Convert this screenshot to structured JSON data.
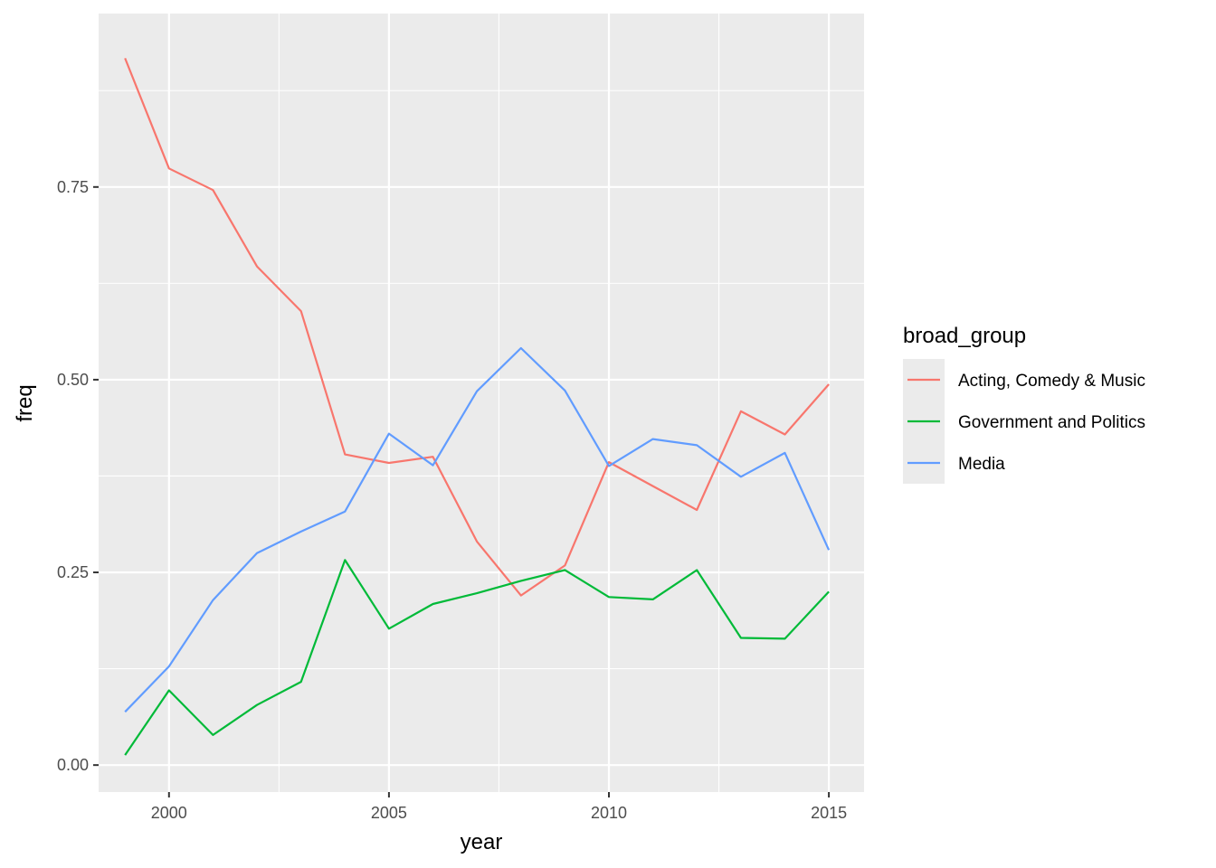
{
  "chart_data": {
    "type": "line",
    "title": "",
    "xlabel": "year",
    "ylabel": "freq",
    "xlim": [
      1998.4,
      2015.8
    ],
    "ylim": [
      -0.035,
      0.975
    ],
    "x_ticks": [
      2000,
      2005,
      2010,
      2015
    ],
    "x_tick_labels": [
      "2000",
      "2005",
      "2010",
      "2015"
    ],
    "y_ticks": [
      0,
      0.25,
      0.5,
      0.75
    ],
    "y_tick_labels": [
      "0.00",
      "0.25",
      "0.50",
      "0.75"
    ],
    "grid": true,
    "legend": {
      "title": "broad_group",
      "placement": "right"
    },
    "x": [
      1999,
      2000,
      2001,
      2002,
      2003,
      2004,
      2005,
      2006,
      2007,
      2008,
      2009,
      2010,
      2011,
      2012,
      2013,
      2014,
      2015
    ],
    "series": [
      {
        "name": "Acting, Comedy & Music",
        "color": "#F8766D",
        "values": [
          0.917,
          0.774,
          0.746,
          0.647,
          0.589,
          0.403,
          0.392,
          0.4,
          0.29,
          0.22,
          0.259,
          0.393,
          0.362,
          0.331,
          0.459,
          0.429,
          0.494
        ]
      },
      {
        "name": "Government and Politics",
        "color": "#00BA38",
        "values": [
          0.013,
          0.097,
          0.039,
          0.078,
          0.108,
          0.266,
          0.177,
          0.209,
          0.223,
          0.239,
          0.253,
          0.218,
          0.215,
          0.253,
          0.165,
          0.164,
          0.225
        ]
      },
      {
        "name": "Media",
        "color": "#619CFF",
        "values": [
          0.069,
          0.128,
          0.214,
          0.275,
          0.303,
          0.329,
          0.43,
          0.389,
          0.485,
          0.541,
          0.486,
          0.388,
          0.423,
          0.415,
          0.374,
          0.405,
          0.279
        ]
      }
    ]
  }
}
